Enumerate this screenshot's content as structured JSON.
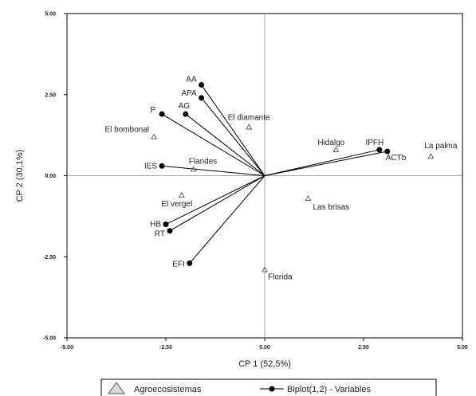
{
  "chart_data": {
    "type": "scatter",
    "subtype": "biplot",
    "xlabel": "CP 1 (52,5%)",
    "ylabel": "CP 2 (30,1%)",
    "xlim": [
      -5.0,
      5.0
    ],
    "ylim": [
      -5.0,
      5.0
    ],
    "x_ticks": [
      {
        "value": -5.0,
        "label": "-5.00"
      },
      {
        "value": -2.5,
        "label": "-2.50"
      },
      {
        "value": 0.0,
        "label": "0.00"
      },
      {
        "value": 2.5,
        "label": "2.50"
      },
      {
        "value": 5.0,
        "label": "5.00"
      }
    ],
    "y_ticks": [
      {
        "value": -5.0,
        "label": "-5.00"
      },
      {
        "value": -2.5,
        "label": "-2.50"
      },
      {
        "value": 0.0,
        "label": "0.00"
      },
      {
        "value": 2.5,
        "label": "2.50"
      },
      {
        "value": 5.0,
        "label": "5.00"
      }
    ],
    "grid": false,
    "reference_lines": "x=0 and y=0",
    "legend_position": "bottom",
    "series": [
      {
        "name": "Agroecosistemas",
        "marker": "triangle",
        "color": "#888888",
        "points": [
          {
            "label": "El bombonal",
            "x": -2.8,
            "y": 1.2
          },
          {
            "label": "Flandes",
            "x": -1.8,
            "y": 0.2
          },
          {
            "label": "El vergel",
            "x": -2.1,
            "y": -0.6
          },
          {
            "label": "El diamante",
            "x": -0.4,
            "y": 1.5
          },
          {
            "label": "Hidalgo",
            "x": 1.8,
            "y": 0.8
          },
          {
            "label": "La palma",
            "x": 4.2,
            "y": 0.6
          },
          {
            "label": "Las brisas",
            "x": 1.1,
            "y": -0.7
          },
          {
            "label": "Florida",
            "x": 0.0,
            "y": -2.9
          }
        ]
      },
      {
        "name": "Biplot(1,2) - Variables",
        "marker": "circle",
        "color": "#000000",
        "vectors": [
          {
            "label": "AA",
            "x": -1.6,
            "y": 2.8
          },
          {
            "label": "APA",
            "x": -1.6,
            "y": 2.4
          },
          {
            "label": "AG",
            "x": -2.0,
            "y": 1.9
          },
          {
            "label": "P",
            "x": -2.6,
            "y": 1.9
          },
          {
            "label": "IES",
            "x": -2.6,
            "y": 0.3
          },
          {
            "label": "HB",
            "x": -2.5,
            "y": -1.5
          },
          {
            "label": "RT",
            "x": -2.4,
            "y": -1.7
          },
          {
            "label": "EFI",
            "x": -1.9,
            "y": -2.7
          },
          {
            "label": "IPFH",
            "x": 2.9,
            "y": 0.8
          },
          {
            "label": "ACTb",
            "x": 3.1,
            "y": 0.75
          }
        ]
      }
    ]
  }
}
